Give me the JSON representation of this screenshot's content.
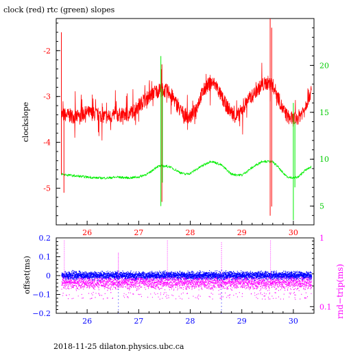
{
  "title": "clock (red) rtc (green) slopes",
  "footer": "2018-11-25  dilaton.physics.ubc.ca",
  "colors": {
    "clock": "#ff0000",
    "rtc": "#00ee00",
    "offset": "#0000ff",
    "rnd": "#ff00ff",
    "axis": "#000000"
  },
  "chart_data": [
    {
      "type": "line",
      "title": "clock (red) rtc (green) slopes",
      "ylabel": "clockslope",
      "xlim": [
        25.4,
        30.4
      ],
      "ylim_left": [
        -5.8,
        -1.3
      ],
      "ylim_right": [
        3,
        25
      ],
      "x_ticks": [
        "26",
        "27",
        "28",
        "29",
        "30"
      ],
      "left_ticks": [
        "-2",
        "-3",
        "-4",
        "-5"
      ],
      "right_ticks": [
        "20",
        "15",
        "10",
        "5"
      ],
      "series": [
        {
          "axis": "left",
          "color": "#ff0000",
          "x": [
            25.5,
            25.6,
            25.8,
            26.0,
            26.2,
            26.4,
            26.6,
            26.8,
            26.9,
            27.0,
            27.1,
            27.2,
            27.3,
            27.45,
            27.6,
            27.7,
            27.8,
            27.9,
            28.0,
            28.1,
            28.2,
            28.3,
            28.4,
            28.5,
            28.6,
            28.7,
            28.8,
            28.9,
            29.0,
            29.1,
            29.2,
            29.3,
            29.4,
            29.5,
            29.6,
            29.7,
            29.8,
            29.9,
            30.0,
            30.1,
            30.2,
            30.3,
            30.35
          ],
          "y": [
            -3.4,
            -3.4,
            -3.45,
            -3.35,
            -3.4,
            -3.45,
            -3.4,
            -3.4,
            -3.3,
            -3.2,
            -3.1,
            -3.0,
            -2.9,
            -2.85,
            -2.9,
            -3.1,
            -3.3,
            -3.4,
            -3.45,
            -3.3,
            -3.0,
            -2.8,
            -2.7,
            -2.75,
            -3.0,
            -3.2,
            -3.35,
            -3.45,
            -3.3,
            -3.1,
            -3.0,
            -2.85,
            -2.75,
            -2.7,
            -2.75,
            -3.0,
            -3.3,
            -3.45,
            -3.5,
            -3.45,
            -3.3,
            -3.0,
            -2.9
          ]
        },
        {
          "axis": "right",
          "color": "#00ee00",
          "x": [
            25.5,
            25.8,
            26.0,
            26.2,
            26.4,
            26.6,
            26.8,
            27.0,
            27.2,
            27.35,
            27.45,
            27.6,
            27.8,
            27.9,
            28.0,
            28.2,
            28.4,
            28.6,
            28.7,
            28.8,
            29.0,
            29.2,
            29.4,
            29.6,
            29.7,
            29.8,
            29.9,
            30.0,
            30.1,
            30.2,
            30.35
          ],
          "y": [
            8.4,
            8.2,
            8.1,
            8.0,
            8.0,
            8.1,
            8.0,
            8.1,
            8.5,
            9.2,
            9.3,
            9.2,
            8.6,
            8.4,
            8.5,
            9.2,
            9.8,
            9.4,
            8.9,
            8.4,
            8.3,
            9.1,
            9.8,
            9.7,
            9.2,
            8.5,
            8.1,
            8.0,
            8.1,
            8.7,
            9.2
          ]
        }
      ],
      "spikes": [
        {
          "series": "clock",
          "x": 25.5,
          "y_min": -4.7,
          "y_max": -1.6
        },
        {
          "series": "clock",
          "x": 25.55,
          "y_min": -5.1,
          "y_max": -3.3
        },
        {
          "series": "clock",
          "x": 27.45,
          "y_min": -5.3,
          "y_max": -2.3
        },
        {
          "series": "clock",
          "x": 29.55,
          "y_min": -5.6,
          "y_max": -1.3
        },
        {
          "series": "clock",
          "x": 29.58,
          "y_min": -5.4,
          "y_max": -1.5
        },
        {
          "series": "rtc",
          "x": 27.43,
          "y_min": 5.0,
          "y_max": 21.0
        },
        {
          "series": "rtc",
          "x": 27.46,
          "y_min": 7.5,
          "y_max": 17.5
        },
        {
          "series": "rtc",
          "x": 30.0,
          "y_min": 3.5,
          "y_max": 16.0
        },
        {
          "series": "rtc",
          "x": 30.03,
          "y_min": 7.0,
          "y_max": 14.0
        }
      ]
    },
    {
      "type": "scatter",
      "ylabel_left": "offset(ms)",
      "ylabel_right": "rnd−trip(ms)",
      "xlim": [
        25.4,
        30.4
      ],
      "ylim_left": [
        -0.2,
        0.2
      ],
      "ylim_right_log": [
        0.08,
        1.0
      ],
      "x_ticks": [
        "26",
        "27",
        "28",
        "29",
        "30"
      ],
      "left_ticks": [
        "0.2",
        "0.1",
        "0",
        "−0.1",
        "−0.2"
      ],
      "right_ticks": [
        "1",
        "0.1"
      ],
      "series": [
        {
          "name": "offset",
          "axis": "left",
          "color": "#0000ff",
          "x_range": [
            25.5,
            30.35
          ],
          "center": 0.0,
          "spread": 0.02
        },
        {
          "name": "rnd-trip",
          "axis": "right",
          "color": "#ff00ff",
          "x_range": [
            25.5,
            30.35
          ],
          "center": 0.22,
          "spread_low": 0.17,
          "spread_high": 0.27
        }
      ],
      "spikes": [
        {
          "series": "rnd-trip",
          "x": 25.55,
          "y_max": 0.9
        },
        {
          "series": "rnd-trip",
          "x": 26.6,
          "y_max": 0.6
        },
        {
          "series": "rnd-trip",
          "x": 27.55,
          "y_max": 0.9
        },
        {
          "series": "rnd-trip",
          "x": 28.6,
          "y_max": 0.85
        },
        {
          "series": "rnd-trip",
          "x": 29.55,
          "y_max": 0.9
        },
        {
          "series": "offset",
          "x": 26.6,
          "y_min": -0.2
        },
        {
          "series": "offset",
          "x": 28.6,
          "y_min": -0.2
        }
      ]
    }
  ]
}
